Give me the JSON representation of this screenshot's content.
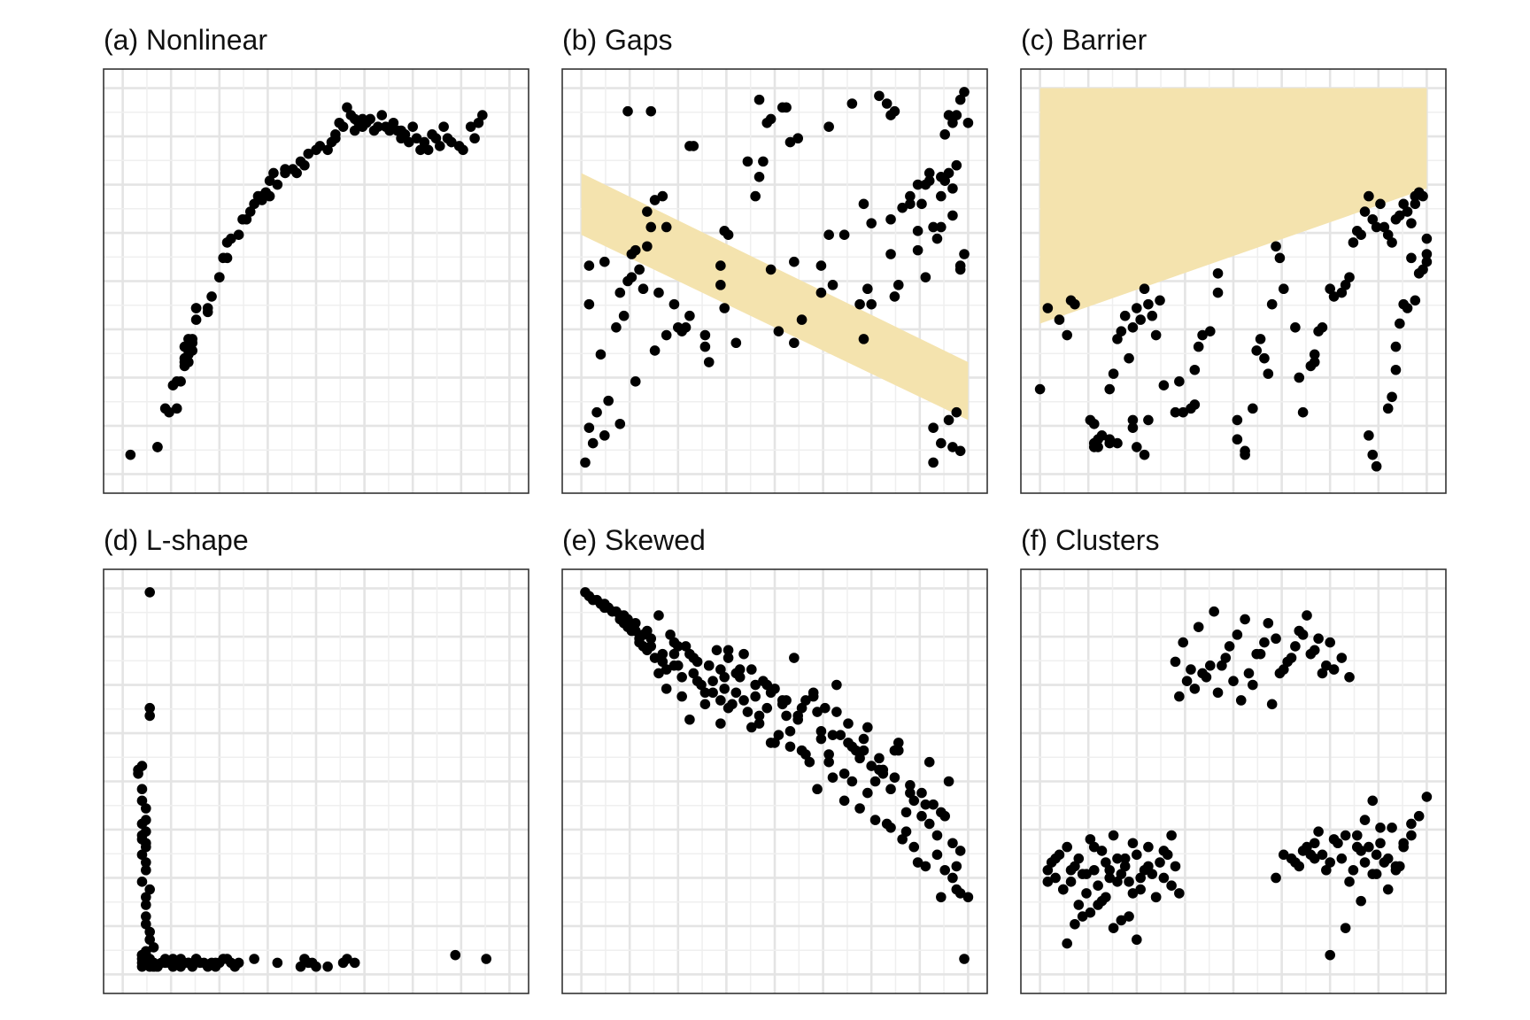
{
  "colors": {
    "points": "#000000",
    "band": "#f4e3ae",
    "grid": "#e4e4e4",
    "frame": "#333333"
  },
  "chart_data": [
    {
      "type": "scatter",
      "title": "(a) Nonlinear",
      "grid": true,
      "xlim": [
        0,
        100
      ],
      "ylim": [
        0,
        100
      ],
      "x": [
        2,
        9,
        9,
        11,
        12,
        13,
        14,
        14,
        15,
        16,
        16,
        16,
        16,
        17,
        17,
        17,
        17,
        18,
        18,
        18,
        19,
        19,
        19,
        22,
        22,
        23,
        25,
        25,
        26,
        27,
        27,
        28,
        30,
        31,
        32,
        33,
        34,
        35,
        36,
        36,
        37,
        38,
        38,
        39,
        40,
        42,
        42,
        44,
        45,
        46,
        47,
        48,
        50,
        51,
        53,
        54,
        55,
        55,
        56,
        57,
        58,
        59,
        60,
        60,
        61,
        62,
        62,
        63,
        64,
        65,
        66,
        67,
        68,
        69,
        70,
        71,
        72,
        72,
        73,
        74,
        75,
        76,
        77,
        78,
        79,
        80,
        81,
        82,
        83,
        84,
        85,
        87,
        88,
        90,
        91,
        92,
        93
      ],
      "y": [
        5,
        7,
        7,
        17,
        16,
        23,
        24,
        17,
        24,
        28,
        29,
        30,
        33,
        31,
        29,
        32,
        35,
        35,
        34,
        32,
        40,
        43,
        43,
        42,
        43,
        46,
        51,
        51,
        56,
        56,
        60,
        61,
        62,
        66,
        66,
        68,
        70,
        72,
        72,
        71,
        73,
        72,
        76,
        78,
        75,
        78,
        79,
        79,
        78,
        81,
        80,
        83,
        84,
        85,
        84,
        86,
        88,
        87,
        91,
        90,
        95,
        93,
        89,
        92,
        91,
        90,
        92,
        91,
        92,
        89,
        90,
        93,
        90,
        89,
        91,
        89,
        87,
        89,
        88,
        86,
        90,
        87,
        84,
        86,
        84,
        88,
        87,
        85,
        90,
        87,
        86,
        85,
        84,
        90,
        87,
        91,
        93
      ]
    },
    {
      "type": "scatter",
      "title": "(b) Gaps",
      "grid": true,
      "xlim": [
        0,
        100
      ],
      "ylim": [
        0,
        100
      ],
      "x": [
        1,
        3,
        6,
        2,
        4,
        7,
        10,
        2,
        2,
        5,
        6,
        9,
        10,
        12,
        14,
        19,
        11,
        16,
        20,
        13,
        15,
        14,
        17,
        17,
        18,
        19,
        21,
        22,
        18,
        12,
        13,
        15,
        28,
        29,
        28,
        24,
        26,
        27,
        22,
        25,
        38,
        40,
        36,
        36,
        37,
        45,
        46,
        47,
        54,
        56,
        48,
        52,
        53,
        43,
        49,
        46,
        32,
        33,
        32,
        37,
        49,
        55,
        55,
        51,
        57,
        62,
        65,
        72,
        73,
        73,
        64,
        68,
        62,
        70,
        64,
        75,
        80,
        85,
        89,
        87,
        90,
        87,
        93,
        91,
        95,
        98,
        99,
        100,
        96,
        97,
        94,
        91,
        95,
        97,
        96,
        98,
        93,
        91,
        93,
        96,
        98,
        98,
        99,
        92,
        75,
        74,
        81,
        80,
        82,
        83,
        85,
        88,
        87,
        89,
        94,
        95,
        96,
        97,
        93,
        90,
        77,
        79,
        80,
        81
      ],
      "y": [
        3,
        8,
        10,
        12,
        16,
        19,
        13,
        54,
        44,
        31,
        55,
        38,
        47,
        50,
        24,
        32,
        41,
        48,
        47,
        57,
        53,
        58,
        59,
        68,
        64,
        71,
        72,
        64,
        94,
        94,
        51,
        53,
        85,
        85,
        41,
        44,
        37,
        38,
        36,
        38,
        62,
        34,
        49,
        54,
        63,
        72,
        77,
        81,
        86,
        87,
        91,
        95,
        95,
        81,
        92,
        97,
        33,
        29,
        36,
        43,
        53,
        55,
        34,
        37,
        40,
        47,
        49,
        44,
        35,
        70,
        62,
        62,
        54,
        96,
        90,
        65,
        66,
        72,
        51,
        58,
        76,
        63,
        72,
        64,
        93,
        97,
        99,
        91,
        91,
        93,
        88,
        12,
        14,
        16,
        7,
        6,
        8,
        3,
        64,
        67,
        53,
        54,
        57,
        61,
        44,
        48,
        46,
        57,
        49,
        69,
        70,
        70,
        75,
        75,
        76,
        78,
        74,
        80,
        77,
        78,
        98,
        96,
        93,
        94
      ]
    },
    {
      "type": "scatter",
      "title": "(c) Barrier",
      "grid": true,
      "xlim": [
        0,
        100
      ],
      "ylim": [
        0,
        100
      ],
      "x": [
        0,
        2,
        5,
        7,
        8,
        9,
        14,
        15,
        18,
        18,
        19,
        20,
        21,
        22,
        23,
        24,
        25,
        26,
        27,
        28,
        29,
        30,
        31,
        32,
        24,
        25,
        27,
        20,
        18,
        16,
        15,
        14,
        13,
        14,
        24,
        28,
        35,
        36,
        37,
        39,
        40,
        40,
        41,
        42,
        44,
        46,
        46,
        51,
        51,
        53,
        53,
        55,
        56,
        57,
        58,
        59,
        60,
        61,
        62,
        63,
        66,
        67,
        68,
        70,
        71,
        71,
        72,
        73,
        75,
        76,
        78,
        79,
        80,
        81,
        82,
        83,
        84,
        85,
        86,
        87,
        88,
        89,
        90,
        91,
        92,
        93,
        94,
        95,
        96,
        97,
        97,
        98,
        99,
        100,
        100,
        85,
        86,
        87,
        90,
        91,
        92,
        92,
        93,
        94,
        95,
        96,
        97,
        98,
        99,
        100
      ],
      "y": [
        22,
        43,
        40,
        36,
        45,
        44,
        8,
        7,
        8,
        22,
        26,
        35,
        37,
        41,
        30,
        38,
        43,
        40,
        48,
        44,
        41,
        36,
        45,
        23,
        12,
        7,
        5,
        8,
        9,
        10,
        9,
        7,
        14,
        13,
        14,
        14,
        16,
        24,
        16,
        17,
        18,
        27,
        33,
        36,
        37,
        47,
        52,
        14,
        9,
        5,
        6,
        17,
        32,
        35,
        30,
        26,
        44,
        59,
        56,
        48,
        38,
        25,
        16,
        28,
        31,
        29,
        37,
        38,
        48,
        46,
        47,
        49,
        51,
        60,
        63,
        62,
        68,
        72,
        66,
        64,
        70,
        64,
        62,
        60,
        66,
        67,
        70,
        68,
        65,
        70,
        72,
        73,
        72,
        55,
        57,
        10,
        5,
        2,
        17,
        20,
        27,
        33,
        39,
        44,
        43,
        56,
        45,
        52,
        53,
        61
      ]
    },
    {
      "type": "scatter",
      "title": "(d) L-shape",
      "grid": true,
      "xlim": [
        0,
        100
      ],
      "ylim": [
        0,
        100
      ],
      "x": [
        7,
        7,
        7,
        5,
        4,
        4,
        5,
        5,
        6,
        6,
        5,
        6,
        5,
        5,
        6,
        6,
        5,
        6,
        6,
        5,
        7,
        6,
        6,
        6,
        6,
        7,
        7,
        8,
        6,
        6,
        5,
        5,
        5,
        6,
        7,
        8,
        5,
        6,
        5,
        6,
        6,
        7,
        8,
        9,
        10,
        11,
        12,
        13,
        14,
        15,
        16,
        17,
        18,
        19,
        20,
        22,
        23,
        24,
        25,
        26,
        28,
        30,
        34,
        40,
        46,
        47,
        48,
        49,
        50,
        53,
        57,
        58,
        60,
        86,
        94,
        8,
        7,
        9,
        11,
        13,
        15,
        17,
        19,
        21,
        24,
        27,
        29
      ],
      "y": [
        99,
        69,
        67,
        54,
        53,
        52,
        48,
        45,
        43,
        40,
        39,
        37,
        36,
        35,
        34,
        33,
        31,
        29,
        27,
        24,
        22,
        20,
        18,
        15,
        13,
        11,
        9,
        7,
        5,
        4,
        4,
        3,
        5,
        4,
        3,
        2,
        2,
        3,
        5,
        6,
        5,
        4,
        3,
        2,
        3,
        4,
        3,
        2,
        3,
        4,
        3,
        3,
        2,
        4,
        3,
        2,
        3,
        3,
        3,
        4,
        3,
        3,
        4,
        3,
        2,
        4,
        3,
        3,
        2,
        2,
        3,
        4,
        3,
        5,
        4,
        2,
        2,
        2,
        3,
        4,
        2,
        3,
        4,
        3,
        2,
        4,
        2
      ]
    },
    {
      "type": "scatter",
      "title": "(e) Skewed",
      "grid": true,
      "xlim": [
        0,
        100
      ],
      "ylim": [
        0,
        100
      ],
      "x": [
        1,
        2,
        3,
        4,
        5,
        6,
        6,
        7,
        8,
        9,
        10,
        10,
        11,
        11,
        12,
        12,
        13,
        13,
        14,
        14,
        15,
        15,
        16,
        16,
        17,
        17,
        18,
        19,
        20,
        21,
        22,
        23,
        24,
        24,
        25,
        26,
        27,
        28,
        29,
        30,
        31,
        32,
        33,
        34,
        35,
        36,
        36,
        37,
        38,
        38,
        39,
        40,
        41,
        42,
        43,
        44,
        45,
        46,
        47,
        48,
        49,
        50,
        51,
        52,
        53,
        54,
        55,
        56,
        57,
        58,
        59,
        60,
        61,
        62,
        63,
        64,
        65,
        66,
        67,
        68,
        69,
        70,
        71,
        72,
        73,
        74,
        75,
        76,
        77,
        78,
        79,
        80,
        81,
        82,
        83,
        84,
        85,
        86,
        87,
        88,
        89,
        90,
        91,
        92,
        93,
        94,
        95,
        96,
        97,
        98,
        99,
        100,
        20,
        22,
        24,
        26,
        28,
        30,
        32,
        34,
        36,
        38,
        40,
        42,
        44,
        46,
        48,
        50,
        52,
        54,
        56,
        58,
        60,
        62,
        64,
        66,
        68,
        70,
        72,
        74,
        76,
        78,
        80,
        82,
        84,
        86,
        88,
        90,
        92,
        94,
        96,
        98,
        18,
        21,
        25,
        29,
        33,
        37,
        41,
        45,
        49,
        53,
        57,
        61,
        65,
        69,
        73,
        77,
        81,
        85,
        89,
        93,
        97
      ],
      "y": [
        99,
        98,
        97,
        97,
        96,
        96,
        95,
        95,
        94,
        94,
        93,
        92,
        93,
        91,
        92,
        90,
        90,
        89,
        89,
        91,
        87,
        86,
        88,
        85,
        84,
        89,
        85,
        82,
        93,
        81,
        79,
        88,
        83,
        86,
        80,
        77,
        85,
        83,
        78,
        81,
        75,
        73,
        80,
        76,
        84,
        79,
        71,
        74,
        84,
        82,
        70,
        73,
        77,
        83,
        68,
        79,
        72,
        65,
        76,
        69,
        60,
        74,
        62,
        71,
        67,
        59,
        82,
        66,
        58,
        71,
        55,
        72,
        48,
        63,
        69,
        57,
        51,
        75,
        62,
        45,
        65,
        50,
        58,
        43,
        61,
        47,
        54,
        40,
        56,
        52,
        39,
        38,
        58,
        60,
        35,
        37,
        49,
        33,
        29,
        41,
        28,
        55,
        44,
        31,
        20,
        27,
        50,
        25,
        22,
        21,
        4,
        20,
        78,
        74,
        80,
        72,
        66,
        76,
        70,
        73,
        65,
        69,
        78,
        71,
        64,
        67,
        75,
        60,
        70,
        63,
        67,
        57,
        73,
        61,
        55,
        68,
        52,
        59,
        56,
        64,
        50,
        53,
        48,
        58,
        42,
        45,
        47,
        39,
        36,
        41,
        34,
        32,
        87,
        83,
        85,
        82,
        80,
        77,
        79,
        75,
        73,
        71,
        69,
        68,
        62,
        60,
        58,
        53,
        51,
        47,
        44,
        42,
        28
      ]
    },
    {
      "type": "scatter",
      "title": "(f) Clusters",
      "grid": true,
      "xlim": [
        0,
        100
      ],
      "ylim": [
        0,
        100
      ],
      "x": [
        2,
        3,
        4,
        5,
        6,
        7,
        8,
        9,
        10,
        11,
        12,
        13,
        14,
        15,
        16,
        17,
        18,
        19,
        20,
        21,
        22,
        23,
        24,
        25,
        26,
        27,
        28,
        29,
        30,
        31,
        32,
        33,
        34,
        35,
        36,
        2,
        4,
        6,
        8,
        10,
        12,
        14,
        16,
        18,
        20,
        22,
        24,
        26,
        28,
        30,
        32,
        34,
        7,
        9,
        11,
        13,
        15,
        17,
        19,
        21,
        23,
        25,
        35,
        37,
        39,
        41,
        43,
        45,
        47,
        49,
        51,
        53,
        55,
        57,
        59,
        61,
        63,
        65,
        67,
        69,
        71,
        73,
        75,
        36,
        38,
        40,
        42,
        44,
        46,
        48,
        50,
        52,
        54,
        56,
        58,
        60,
        62,
        64,
        66,
        68,
        70,
        72,
        74,
        76,
        78,
        80,
        82,
        84,
        86,
        88,
        90,
        92,
        94,
        96,
        98,
        66,
        68,
        70,
        72,
        74,
        76,
        78,
        80,
        82,
        84,
        86,
        88,
        90,
        92,
        94,
        96,
        100,
        61,
        63,
        65,
        67,
        69,
        71,
        73,
        75,
        77,
        79,
        81,
        83,
        85,
        87,
        89,
        91,
        93,
        71,
        75,
        79,
        83,
        87
      ],
      "y": [
        27,
        29,
        25,
        31,
        22,
        33,
        24,
        28,
        30,
        26,
        21,
        35,
        27,
        23,
        32,
        29,
        25,
        36,
        30,
        26,
        28,
        24,
        34,
        31,
        22,
        27,
        33,
        26,
        20,
        29,
        25,
        31,
        36,
        28,
        21,
        24,
        30,
        22,
        27,
        18,
        26,
        33,
        19,
        27,
        24,
        30,
        21,
        25,
        28,
        20,
        32,
        23,
        8,
        13,
        15,
        16,
        18,
        20,
        12,
        14,
        15,
        9,
        81,
        86,
        79,
        90,
        77,
        94,
        80,
        85,
        88,
        92,
        75,
        83,
        91,
        87,
        79,
        82,
        89,
        93,
        84,
        78,
        86,
        72,
        76,
        74,
        78,
        80,
        73,
        82,
        76,
        71,
        78,
        83,
        86,
        70,
        78,
        81,
        85,
        88,
        83,
        87,
        80,
        79,
        82,
        77,
        36,
        40,
        45,
        34,
        30,
        28,
        33,
        36,
        41,
        29,
        32,
        31,
        37,
        27,
        35,
        30,
        24,
        33,
        29,
        26,
        38,
        22,
        27,
        34,
        39,
        46,
        25,
        31,
        30,
        28,
        33,
        34,
        31,
        29,
        34,
        36,
        27,
        32,
        33,
        31,
        29,
        38,
        28,
        30,
        5,
        12,
        19,
        26
      ]
    }
  ]
}
